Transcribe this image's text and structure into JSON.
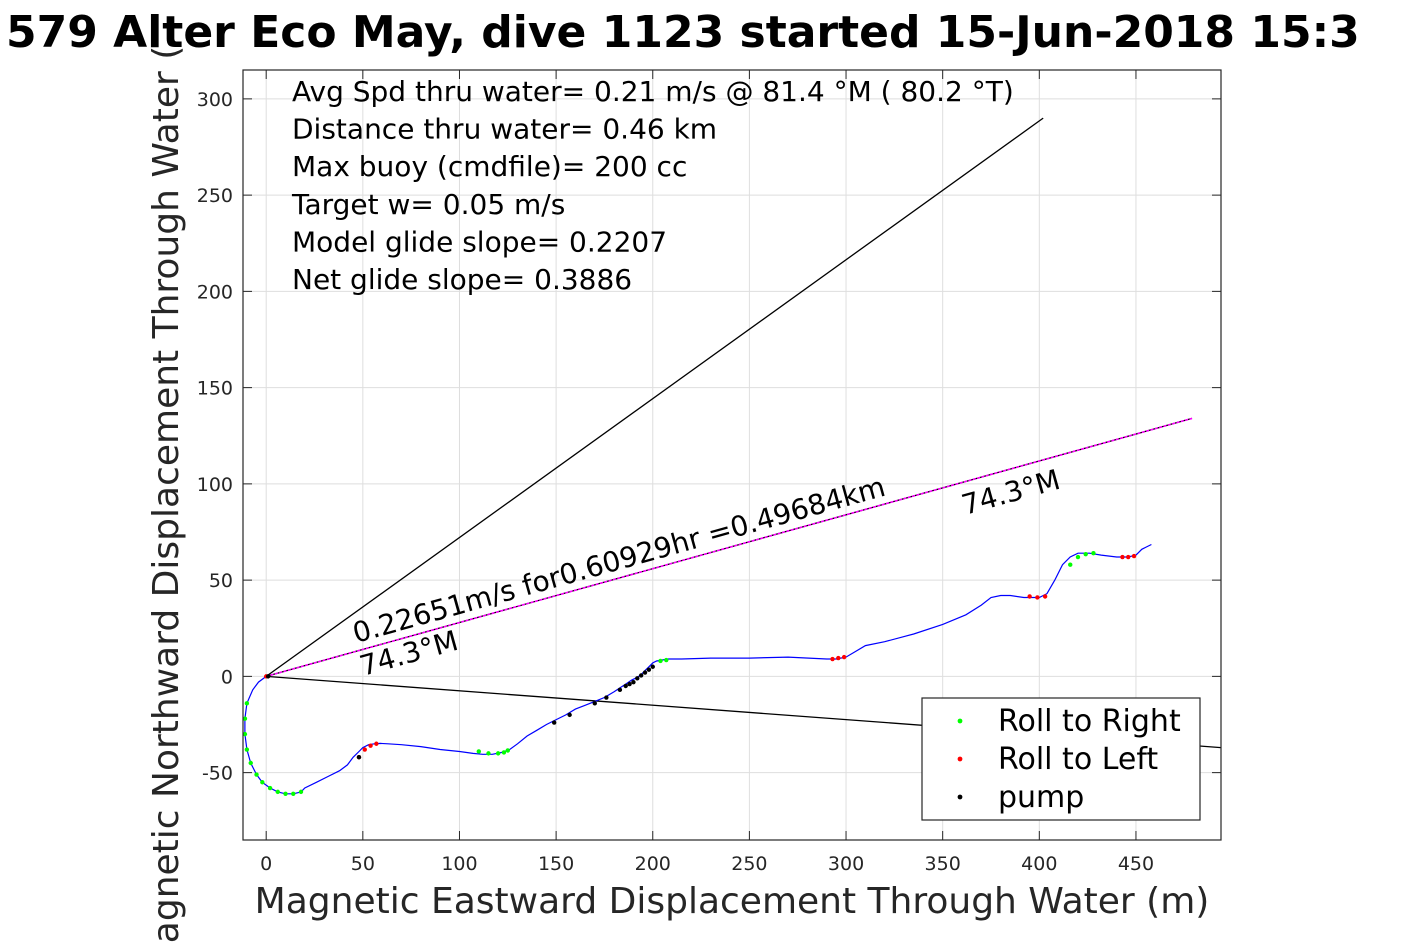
{
  "chart_data": {
    "type": "scatter",
    "title": "579 Alter Eco May, dive 1123 started 15-Jun-2018 15:3",
    "xlabel": "Magnetic Eastward Displacement Through Water (m)",
    "ylabel": "Magnetic Northward Displacement Through Water (",
    "xlim": [
      -12,
      494
    ],
    "ylim": [
      -85,
      315
    ],
    "xticks": [
      0,
      50,
      100,
      150,
      200,
      250,
      300,
      350,
      400,
      450
    ],
    "yticks": [
      -50,
      0,
      50,
      100,
      150,
      200,
      250,
      300
    ],
    "grid": true,
    "legend_position": "bottom-right",
    "stats_lines": [
      "Avg Spd thru water=  0.21 m/s @  81.4 °M ( 80.2 °T)",
      "Distance thru water=  0.46 km",
      "Max buoy (cmdfile)= 200 cc",
      "Target w= 0.05 m/s",
      "Model glide slope= 0.2207",
      "Net glide slope= 0.3886"
    ],
    "annotations": {
      "current_text": "0.22651m/s for0.60929hr =0.49684km",
      "heading_start": "74.3°M",
      "heading_end": "74.3°M"
    },
    "colors": {
      "track": "#0000ff",
      "current_line": "#ff00ff",
      "roll_right": "#00ff00",
      "roll_left": "#ff0000",
      "pump": "#000000"
    },
    "reference_lines": [
      {
        "x": [
          0,
          402
        ],
        "y": [
          0,
          290
        ]
      },
      {
        "x": [
          0,
          494
        ],
        "y": [
          0,
          -37
        ]
      },
      {
        "x": [
          0,
          479
        ],
        "y": [
          0,
          134
        ]
      }
    ],
    "current_vector": {
      "x": [
        0,
        479
      ],
      "y": [
        0,
        134
      ]
    },
    "track": {
      "x": [
        0,
        -4,
        -7,
        -10,
        -11,
        -11,
        -10,
        -8,
        -5,
        -2,
        2,
        6,
        10,
        14,
        18,
        20,
        26,
        32,
        38,
        42,
        45,
        48,
        50,
        53,
        56,
        59,
        63,
        70,
        80,
        90,
        100,
        107,
        112,
        117,
        122,
        126,
        130,
        135,
        140,
        145,
        149,
        155,
        160,
        165,
        170,
        175,
        180,
        183,
        186,
        189,
        192,
        194,
        196,
        198,
        200,
        202,
        205,
        208,
        215,
        230,
        250,
        270,
        290,
        295,
        300,
        305,
        310,
        320,
        335,
        350,
        362,
        370,
        375,
        380,
        385,
        392,
        396,
        400,
        404,
        408,
        412,
        416,
        420,
        426,
        432,
        440,
        446,
        450,
        453,
        455,
        458
      ],
      "y": [
        0,
        -3,
        -7,
        -14,
        -22,
        -30,
        -38,
        -45,
        -51,
        -55,
        -58,
        -60,
        -61,
        -61,
        -60,
        -58,
        -55,
        -52,
        -49,
        -46,
        -42,
        -39,
        -37,
        -35.5,
        -35,
        -34.8,
        -35,
        -35.5,
        -36.5,
        -38,
        -39,
        -40,
        -40.5,
        -40.5,
        -39.5,
        -38,
        -35,
        -31,
        -28,
        -25,
        -23,
        -20,
        -17,
        -15,
        -13,
        -11,
        -8,
        -6,
        -4,
        -2,
        -0.5,
        1,
        3,
        5,
        7,
        8,
        8.5,
        9,
        9,
        9.5,
        9.5,
        10,
        9,
        9,
        10,
        13,
        16,
        18,
        22,
        27,
        32,
        37,
        41,
        42,
        42,
        41,
        41,
        41,
        43,
        50,
        58,
        62,
        64,
        64,
        63,
        62,
        62,
        63,
        66,
        67,
        68.5
      ]
    },
    "series": [
      {
        "name": "Roll to Right",
        "marker_color": "#00ff00",
        "x": [
          -10,
          -11,
          -11,
          -10,
          -8,
          -5,
          -2,
          2,
          6,
          10,
          14,
          18,
          110,
          115,
          120,
          123,
          125,
          204,
          207,
          416,
          420,
          424,
          428
        ],
        "y": [
          -14,
          -22,
          -30,
          -38,
          -45,
          -51,
          -55,
          -58,
          -60,
          -61,
          -61,
          -60,
          -39,
          -40,
          -40,
          -39.5,
          -38.5,
          8,
          8.5,
          58,
          62,
          63.5,
          64
        ]
      },
      {
        "name": "Roll to Left",
        "marker_color": "#ff0000",
        "x": [
          0,
          48,
          51,
          54,
          57,
          293,
          296,
          299,
          395,
          399,
          403,
          443,
          446,
          449
        ],
        "y": [
          0,
          -42,
          -38,
          -36,
          -35,
          9,
          9.5,
          10,
          41.5,
          41,
          41.5,
          62,
          62,
          62.5
        ]
      },
      {
        "name": "pump",
        "marker_color": "#000000",
        "x": [
          1,
          48,
          149,
          157,
          170,
          176,
          183,
          186,
          188,
          190,
          192,
          194,
          196,
          198,
          200
        ],
        "y": [
          0,
          -42,
          -24,
          -20,
          -14,
          -11,
          -7,
          -5,
          -4,
          -3,
          -1,
          0.5,
          2,
          3.5,
          5
        ]
      }
    ]
  }
}
